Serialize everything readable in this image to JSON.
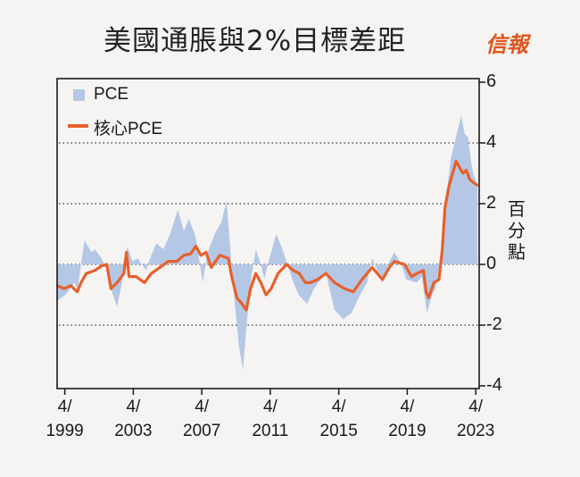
{
  "title": "美國通脹與2%目標差距",
  "logo": "信報",
  "colors": {
    "pce": "#b4c8e6",
    "core": "#e8602a",
    "axis": "#1a1a1a"
  },
  "chart_data": {
    "type": "area",
    "title": "美國通脹與2%目標差距",
    "ylabel": "百分點",
    "xlabel": "",
    "ylim": [
      -4,
      6
    ],
    "yticks": [
      "6",
      "4",
      "2",
      "0",
      "-2",
      "-4"
    ],
    "ytick_values": [
      6,
      4,
      2,
      0,
      -2,
      -4
    ],
    "gridlines": [
      4,
      2,
      0,
      -2
    ],
    "xlim": [
      1998.8,
      2023.45
    ],
    "xticks": [
      {
        "month": "4/",
        "year": "1999",
        "value": 1999.25
      },
      {
        "month": "4/",
        "year": "2003",
        "value": 2003.25
      },
      {
        "month": "4/",
        "year": "2007",
        "value": 2007.25
      },
      {
        "month": "4/",
        "year": "2011",
        "value": 2011.25
      },
      {
        "month": "4/",
        "year": "2015",
        "value": 2015.25
      },
      {
        "month": "4/",
        "year": "2019",
        "value": 2019.25
      },
      {
        "month": "4/",
        "year": "2023",
        "value": 2023.25
      }
    ],
    "legend": {
      "position": "top-left",
      "entries": [
        "PCE",
        "核心PCE"
      ]
    },
    "series": [
      {
        "name": "PCE",
        "kind": "area",
        "points": [
          [
            1998.8,
            -1.2
          ],
          [
            1999.3,
            -1.0
          ],
          [
            1999.8,
            -0.6
          ],
          [
            2000.0,
            -0.8
          ],
          [
            2000.4,
            0.8
          ],
          [
            2000.8,
            0.4
          ],
          [
            2001.0,
            0.5
          ],
          [
            2001.4,
            0.2
          ],
          [
            2001.7,
            -0.2
          ],
          [
            2002.0,
            -0.9
          ],
          [
            2002.3,
            -1.4
          ],
          [
            2002.7,
            -0.3
          ],
          [
            2002.9,
            0.6
          ],
          [
            2003.2,
            0.1
          ],
          [
            2003.5,
            0.2
          ],
          [
            2004.0,
            -0.2
          ],
          [
            2004.3,
            0.3
          ],
          [
            2004.6,
            0.7
          ],
          [
            2005.0,
            0.5
          ],
          [
            2005.4,
            1.0
          ],
          [
            2005.85,
            1.8
          ],
          [
            2006.2,
            1.1
          ],
          [
            2006.5,
            1.5
          ],
          [
            2006.9,
            0.9
          ],
          [
            2007.3,
            -0.6
          ],
          [
            2007.6,
            0.4
          ],
          [
            2008.0,
            1.0
          ],
          [
            2008.4,
            1.4
          ],
          [
            2008.7,
            2.1
          ],
          [
            2008.9,
            0.6
          ],
          [
            2009.1,
            -0.8
          ],
          [
            2009.4,
            -2.6
          ],
          [
            2009.65,
            -3.5
          ],
          [
            2009.9,
            -1.8
          ],
          [
            2010.1,
            -0.6
          ],
          [
            2010.4,
            0.5
          ],
          [
            2010.7,
            0.0
          ],
          [
            2010.9,
            -0.5
          ],
          [
            2011.2,
            0.2
          ],
          [
            2011.6,
            1.0
          ],
          [
            2011.9,
            0.6
          ],
          [
            2012.2,
            0.1
          ],
          [
            2012.6,
            -0.6
          ],
          [
            2012.9,
            -1.0
          ],
          [
            2013.4,
            -1.3
          ],
          [
            2013.8,
            -0.8
          ],
          [
            2014.2,
            -0.5
          ],
          [
            2014.5,
            -0.3
          ],
          [
            2015.0,
            -1.5
          ],
          [
            2015.5,
            -1.8
          ],
          [
            2016.0,
            -1.6
          ],
          [
            2016.5,
            -1.0
          ],
          [
            2016.9,
            -0.6
          ],
          [
            2017.2,
            0.2
          ],
          [
            2017.8,
            -0.6
          ],
          [
            2018.2,
            0.1
          ],
          [
            2018.5,
            0.4
          ],
          [
            2018.9,
            0.0
          ],
          [
            2019.2,
            -0.5
          ],
          [
            2019.8,
            -0.6
          ],
          [
            2020.1,
            -0.4
          ],
          [
            2020.4,
            -1.6
          ],
          [
            2020.7,
            -1.0
          ],
          [
            2020.9,
            -0.8
          ],
          [
            2021.2,
            0.3
          ],
          [
            2021.4,
            2.0
          ],
          [
            2021.6,
            2.6
          ],
          [
            2021.8,
            3.5
          ],
          [
            2022.1,
            4.2
          ],
          [
            2022.4,
            4.9
          ],
          [
            2022.6,
            4.3
          ],
          [
            2022.8,
            4.2
          ],
          [
            2023.0,
            3.3
          ],
          [
            2023.1,
            3.0
          ],
          [
            2023.35,
            2.6
          ]
        ]
      },
      {
        "name": "核心PCE",
        "kind": "line",
        "points": [
          [
            1998.8,
            -0.7
          ],
          [
            1999.2,
            -0.8
          ],
          [
            1999.6,
            -0.7
          ],
          [
            1999.97,
            -0.9
          ],
          [
            2000.2,
            -0.6
          ],
          [
            2000.5,
            -0.3
          ],
          [
            2001.0,
            -0.2
          ],
          [
            2001.4,
            -0.05
          ],
          [
            2001.7,
            0.0
          ],
          [
            2001.95,
            -0.8
          ],
          [
            2002.3,
            -0.6
          ],
          [
            2002.7,
            -0.3
          ],
          [
            2002.85,
            0.4
          ],
          [
            2003.0,
            -0.4
          ],
          [
            2003.4,
            -0.4
          ],
          [
            2003.9,
            -0.6
          ],
          [
            2004.3,
            -0.3
          ],
          [
            2004.8,
            -0.1
          ],
          [
            2005.3,
            0.1
          ],
          [
            2005.8,
            0.1
          ],
          [
            2006.2,
            0.3
          ],
          [
            2006.6,
            0.35
          ],
          [
            2006.9,
            0.6
          ],
          [
            2007.2,
            0.3
          ],
          [
            2007.5,
            0.4
          ],
          [
            2007.8,
            -0.1
          ],
          [
            2008.3,
            0.3
          ],
          [
            2008.8,
            0.2
          ],
          [
            2009.0,
            -0.4
          ],
          [
            2009.3,
            -1.1
          ],
          [
            2009.6,
            -1.3
          ],
          [
            2009.85,
            -1.5
          ],
          [
            2010.1,
            -0.8
          ],
          [
            2010.4,
            -0.3
          ],
          [
            2010.7,
            -0.6
          ],
          [
            2011.0,
            -1.0
          ],
          [
            2011.3,
            -0.8
          ],
          [
            2011.7,
            -0.3
          ],
          [
            2012.2,
            0.0
          ],
          [
            2012.6,
            -0.2
          ],
          [
            2012.95,
            -0.3
          ],
          [
            2013.3,
            -0.6
          ],
          [
            2013.6,
            -0.6
          ],
          [
            2014.0,
            -0.5
          ],
          [
            2014.5,
            -0.3
          ],
          [
            2015.0,
            -0.6
          ],
          [
            2015.6,
            -0.8
          ],
          [
            2016.1,
            -0.9
          ],
          [
            2016.6,
            -0.5
          ],
          [
            2017.2,
            -0.1
          ],
          [
            2017.8,
            -0.5
          ],
          [
            2018.2,
            -0.1
          ],
          [
            2018.5,
            0.1
          ],
          [
            2019.1,
            0.0
          ],
          [
            2019.5,
            -0.4
          ],
          [
            2019.8,
            -0.3
          ],
          [
            2020.2,
            -0.2
          ],
          [
            2020.35,
            -0.9
          ],
          [
            2020.5,
            -1.1
          ],
          [
            2020.8,
            -0.6
          ],
          [
            2021.1,
            -0.5
          ],
          [
            2021.3,
            0.5
          ],
          [
            2021.45,
            1.85
          ],
          [
            2021.7,
            2.6
          ],
          [
            2021.9,
            3.0
          ],
          [
            2022.1,
            3.4
          ],
          [
            2022.3,
            3.2
          ],
          [
            2022.5,
            3.0
          ],
          [
            2022.7,
            3.1
          ],
          [
            2022.9,
            2.8
          ],
          [
            2023.1,
            2.7
          ],
          [
            2023.35,
            2.6
          ]
        ]
      }
    ]
  }
}
